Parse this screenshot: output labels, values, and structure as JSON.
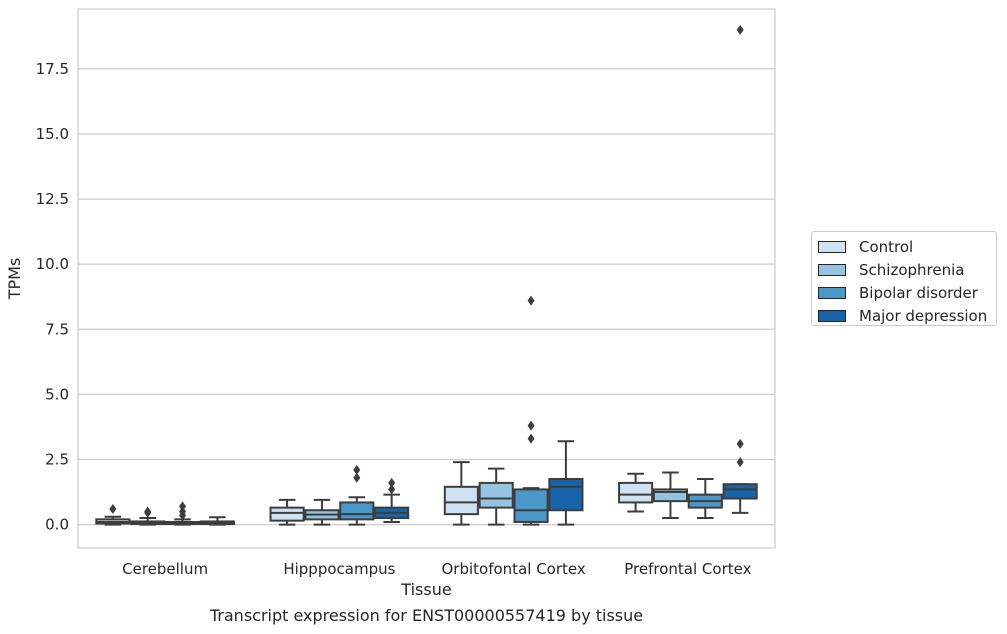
{
  "caption": "Transcript expression for ENST00000557419 by tissue",
  "chart_data": {
    "type": "box",
    "xlabel": "Tissue",
    "ylabel": "TPMs",
    "ylim": [
      -0.9,
      19.8
    ],
    "yticks": [
      "0.0",
      "2.5",
      "5.0",
      "7.5",
      "10.0",
      "12.5",
      "15.0",
      "17.5"
    ],
    "grid": "horizontal",
    "legend_placement": "right",
    "categories": [
      "Cerebellum",
      "Hipppocampus",
      "Orbitofontal Cortex",
      "Prefrontal Cortex"
    ],
    "series": [
      {
        "name": "Control",
        "color": "#d0e1f2",
        "boxes": [
          {
            "whislo": 0.0,
            "q1": 0.04,
            "med": 0.1,
            "q3": 0.2,
            "whishi": 0.3,
            "fliers": [
              0.6
            ]
          },
          {
            "whislo": 0.0,
            "q1": 0.15,
            "med": 0.45,
            "q3": 0.65,
            "whishi": 0.95,
            "fliers": []
          },
          {
            "whislo": 0.0,
            "q1": 0.4,
            "med": 0.85,
            "q3": 1.45,
            "whishi": 2.4,
            "fliers": []
          },
          {
            "whislo": 0.5,
            "q1": 0.85,
            "med": 1.15,
            "q3": 1.6,
            "whishi": 1.95,
            "fliers": []
          }
        ]
      },
      {
        "name": "Schizophrenia",
        "color": "#94c4df",
        "boxes": [
          {
            "whislo": 0.0,
            "q1": 0.02,
            "med": 0.06,
            "q3": 0.12,
            "whishi": 0.25,
            "fliers": [
              0.5,
              0.45
            ]
          },
          {
            "whislo": 0.0,
            "q1": 0.2,
            "med": 0.38,
            "q3": 0.55,
            "whishi": 0.95,
            "fliers": []
          },
          {
            "whislo": 0.0,
            "q1": 0.65,
            "med": 1.0,
            "q3": 1.6,
            "whishi": 2.15,
            "fliers": []
          },
          {
            "whislo": 0.25,
            "q1": 0.9,
            "med": 1.25,
            "q3": 1.35,
            "whishi": 2.0,
            "fliers": []
          }
        ]
      },
      {
        "name": "Bipolar disorder",
        "color": "#4a98c9",
        "boxes": [
          {
            "whislo": 0.0,
            "q1": 0.02,
            "med": 0.05,
            "q3": 0.1,
            "whishi": 0.2,
            "fliers": [
              0.7,
              0.5,
              0.35
            ]
          },
          {
            "whislo": 0.0,
            "q1": 0.2,
            "med": 0.4,
            "q3": 0.85,
            "whishi": 1.05,
            "fliers": [
              2.1,
              1.8
            ]
          },
          {
            "whislo": 0.0,
            "q1": 0.1,
            "med": 0.55,
            "q3": 1.35,
            "whishi": 1.4,
            "fliers": [
              8.6,
              3.8,
              3.3
            ]
          },
          {
            "whislo": 0.25,
            "q1": 0.65,
            "med": 0.9,
            "q3": 1.15,
            "whishi": 1.75,
            "fliers": []
          }
        ]
      },
      {
        "name": "Major depression",
        "color": "#1764ab",
        "boxes": [
          {
            "whislo": 0.0,
            "q1": 0.02,
            "med": 0.06,
            "q3": 0.12,
            "whishi": 0.28,
            "fliers": []
          },
          {
            "whislo": 0.1,
            "q1": 0.25,
            "med": 0.45,
            "q3": 0.65,
            "whishi": 1.15,
            "fliers": [
              1.6,
              1.35
            ]
          },
          {
            "whislo": 0.0,
            "q1": 0.55,
            "med": 1.45,
            "q3": 1.75,
            "whishi": 3.2,
            "fliers": []
          },
          {
            "whislo": 0.45,
            "q1": 1.0,
            "med": 1.35,
            "q3": 1.55,
            "whishi": 1.55,
            "fliers": [
              19.0,
              3.1,
              2.4
            ]
          }
        ]
      }
    ]
  }
}
